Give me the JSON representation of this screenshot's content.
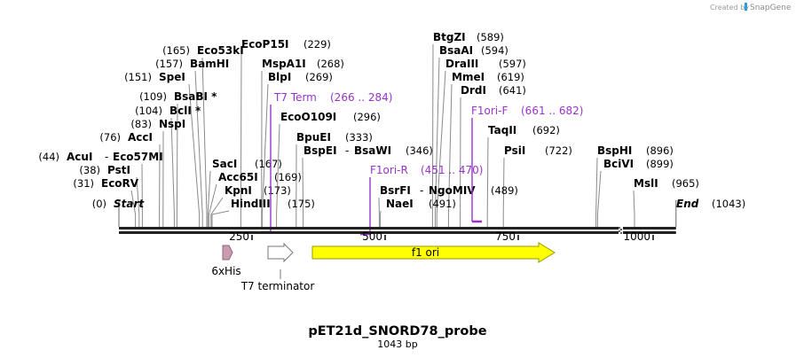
{
  "credit": {
    "prefix": "Created by",
    "brand": "SnapGene",
    "brand_color": "#2a9fd8"
  },
  "map": {
    "name": "pET21d_SNORD78_probe",
    "length_label": "1043 bp",
    "length_bp": 1043,
    "ticks": [
      "250",
      "500",
      "750",
      "1000"
    ],
    "tick_values": [
      250,
      500,
      750,
      1000
    ],
    "break_at_bp": 940
  },
  "sites": [
    {
      "name": "Start",
      "pos_label": "(0)",
      "bp": 0,
      "italic": true,
      "side": "left"
    },
    {
      "name": "EcoRV",
      "pos_label": "(31)",
      "bp": 31,
      "side": "left"
    },
    {
      "name": "PstI",
      "pos_label": "(38)",
      "bp": 38,
      "side": "left"
    },
    {
      "name": "AcuI",
      "name2": "Eco57MI",
      "pos_label": "(44)",
      "bp": 44,
      "side": "left"
    },
    {
      "name": "AccI",
      "pos_label": "(76)",
      "bp": 76,
      "side": "left"
    },
    {
      "name": "NspI",
      "pos_label": "(83)",
      "bp": 83,
      "side": "left"
    },
    {
      "name": "BclI *",
      "pos_label": "(104)",
      "bp": 104,
      "side": "left"
    },
    {
      "name": "BsaBI *",
      "pos_label": "(109)",
      "bp": 109,
      "side": "left"
    },
    {
      "name": "SpeI",
      "pos_label": "(151)",
      "bp": 151,
      "side": "left"
    },
    {
      "name": "BamHI",
      "pos_label": "(157)",
      "bp": 157,
      "side": "left"
    },
    {
      "name": "Eco53kI",
      "pos_label": "(165)",
      "bp": 165,
      "side": "left"
    },
    {
      "name": "SacI",
      "pos_label": "(167)",
      "bp": 167,
      "side": "right"
    },
    {
      "name": "Acc65I",
      "pos_label": "(169)",
      "bp": 169,
      "side": "right"
    },
    {
      "name": "KpnI",
      "pos_label": "(173)",
      "bp": 173,
      "side": "right"
    },
    {
      "name": "HindIII",
      "pos_label": "(175)",
      "bp": 175,
      "side": "right"
    },
    {
      "name": "EcoP15I",
      "pos_label": "(229)",
      "bp": 229,
      "side": "right"
    },
    {
      "name": "MspA1I",
      "pos_label": "(268)",
      "bp": 268,
      "side": "right"
    },
    {
      "name": "BlpI",
      "pos_label": "(269)",
      "bp": 269,
      "side": "right"
    },
    {
      "name": "EcoO109I",
      "pos_label": "(296)",
      "bp": 296,
      "side": "right"
    },
    {
      "name": "BpuEI",
      "pos_label": "(333)",
      "bp": 333,
      "side": "right"
    },
    {
      "name": "BspEI",
      "name2": "BsaWI",
      "pos_label": "(346)",
      "bp": 346,
      "side": "right"
    },
    {
      "name": "BsrFI",
      "name2": "NgoMIV",
      "pos_label": "(489)",
      "bp": 489,
      "side": "right"
    },
    {
      "name": "NaeI",
      "pos_label": "(491)",
      "bp": 491,
      "side": "right"
    },
    {
      "name": "BtgZI",
      "pos_label": "(589)",
      "bp": 589,
      "side": "right"
    },
    {
      "name": "BsaAI",
      "pos_label": "(594)",
      "bp": 594,
      "side": "right"
    },
    {
      "name": "DraIII",
      "pos_label": "(597)",
      "bp": 597,
      "side": "right"
    },
    {
      "name": "MmeI",
      "pos_label": "(619)",
      "bp": 619,
      "side": "right"
    },
    {
      "name": "DrdI",
      "pos_label": "(641)",
      "bp": 641,
      "side": "right"
    },
    {
      "name": "TaqII",
      "pos_label": "(692)",
      "bp": 692,
      "side": "right"
    },
    {
      "name": "PsiI",
      "pos_label": "(722)",
      "bp": 722,
      "side": "right"
    },
    {
      "name": "BspHI",
      "pos_label": "(896)",
      "bp": 896,
      "side": "right"
    },
    {
      "name": "BciVI",
      "pos_label": "(899)",
      "bp": 899,
      "side": "right"
    },
    {
      "name": "MslI",
      "pos_label": "(965)",
      "bp": 965,
      "side": "right"
    },
    {
      "name": "End",
      "pos_label": "(1043)",
      "bp": 1043,
      "italic": true,
      "side": "right"
    }
  ],
  "primers": [
    {
      "name": "T7 Term",
      "range_label": "(266 .. 284)",
      "start": 266,
      "end": 284,
      "strand": "reverse"
    },
    {
      "name": "F1ori-R",
      "range_label": "(451 .. 470)",
      "start": 451,
      "end": 470,
      "strand": "reverse"
    },
    {
      "name": "F1ori-F",
      "range_label": "(661 .. 682)",
      "start": 661,
      "end": 682,
      "strand": "forward"
    }
  ],
  "features": [
    {
      "name": "6xHis",
      "start": 195,
      "end": 212,
      "color": "#cc99b2"
    },
    {
      "name": "T7 terminator",
      "start": 278,
      "end": 325,
      "color": "#ffffff"
    },
    {
      "name": "f1 ori",
      "start": 364,
      "end": 820,
      "color": "#ffff00"
    }
  ],
  "colors": {
    "primer": "#9933cc",
    "backbone": "#222222",
    "site_line": "#888888"
  }
}
